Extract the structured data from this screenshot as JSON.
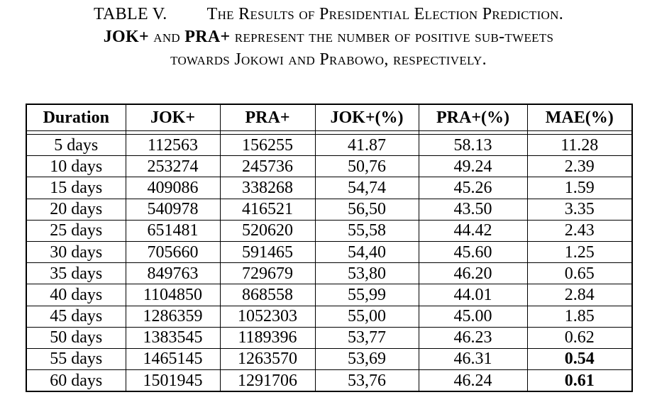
{
  "caption": {
    "label": "TABLE V.",
    "line1": "The Results of Presidential Election Prediction.",
    "jok": "JOK+",
    "and": " and ",
    "pra": "PRA+",
    "line2_rest": " represent the number of positive sub-tweets",
    "line3": "towards Jokowi and Prabowo, respectively."
  },
  "table": {
    "headers": [
      "Duration",
      "JOK+",
      "PRA+",
      "JOK+(%)",
      "PRA+(%)",
      "MAE(%)"
    ],
    "rows": [
      [
        "5 days",
        "112563",
        "156255",
        "41.87",
        "58.13",
        "11.28"
      ],
      [
        "10 days",
        "253274",
        "245736",
        "50,76",
        "49.24",
        "2.39"
      ],
      [
        "15 days",
        "409086",
        "338268",
        "54,74",
        "45.26",
        "1.59"
      ],
      [
        "20 days",
        "540978",
        "416521",
        "56,50",
        "43.50",
        "3.35"
      ],
      [
        "25 days",
        "651481",
        "520620",
        "55,58",
        "44.42",
        "2.43"
      ],
      [
        "30 days",
        "705660",
        "591465",
        "54,40",
        "45.60",
        "1.25"
      ],
      [
        "35 days",
        "849763",
        "729679",
        "53,80",
        "46.20",
        "0.65"
      ],
      [
        "40 days",
        "1104850",
        "868558",
        "55,99",
        "44.01",
        "2.84"
      ],
      [
        "45 days",
        "1286359",
        "1052303",
        "55,00",
        "45.00",
        "1.85"
      ],
      [
        "50 days",
        "1383545",
        "1189396",
        "53,77",
        "46.23",
        "0.62"
      ],
      [
        "55 days",
        "1465145",
        "1263570",
        "53,69",
        "46.31",
        "0.54"
      ],
      [
        "60 days",
        "1501945",
        "1291706",
        "53,76",
        "46.24",
        "0.61"
      ]
    ],
    "bold_cells": [
      [
        10,
        5
      ],
      [
        11,
        5
      ]
    ]
  }
}
